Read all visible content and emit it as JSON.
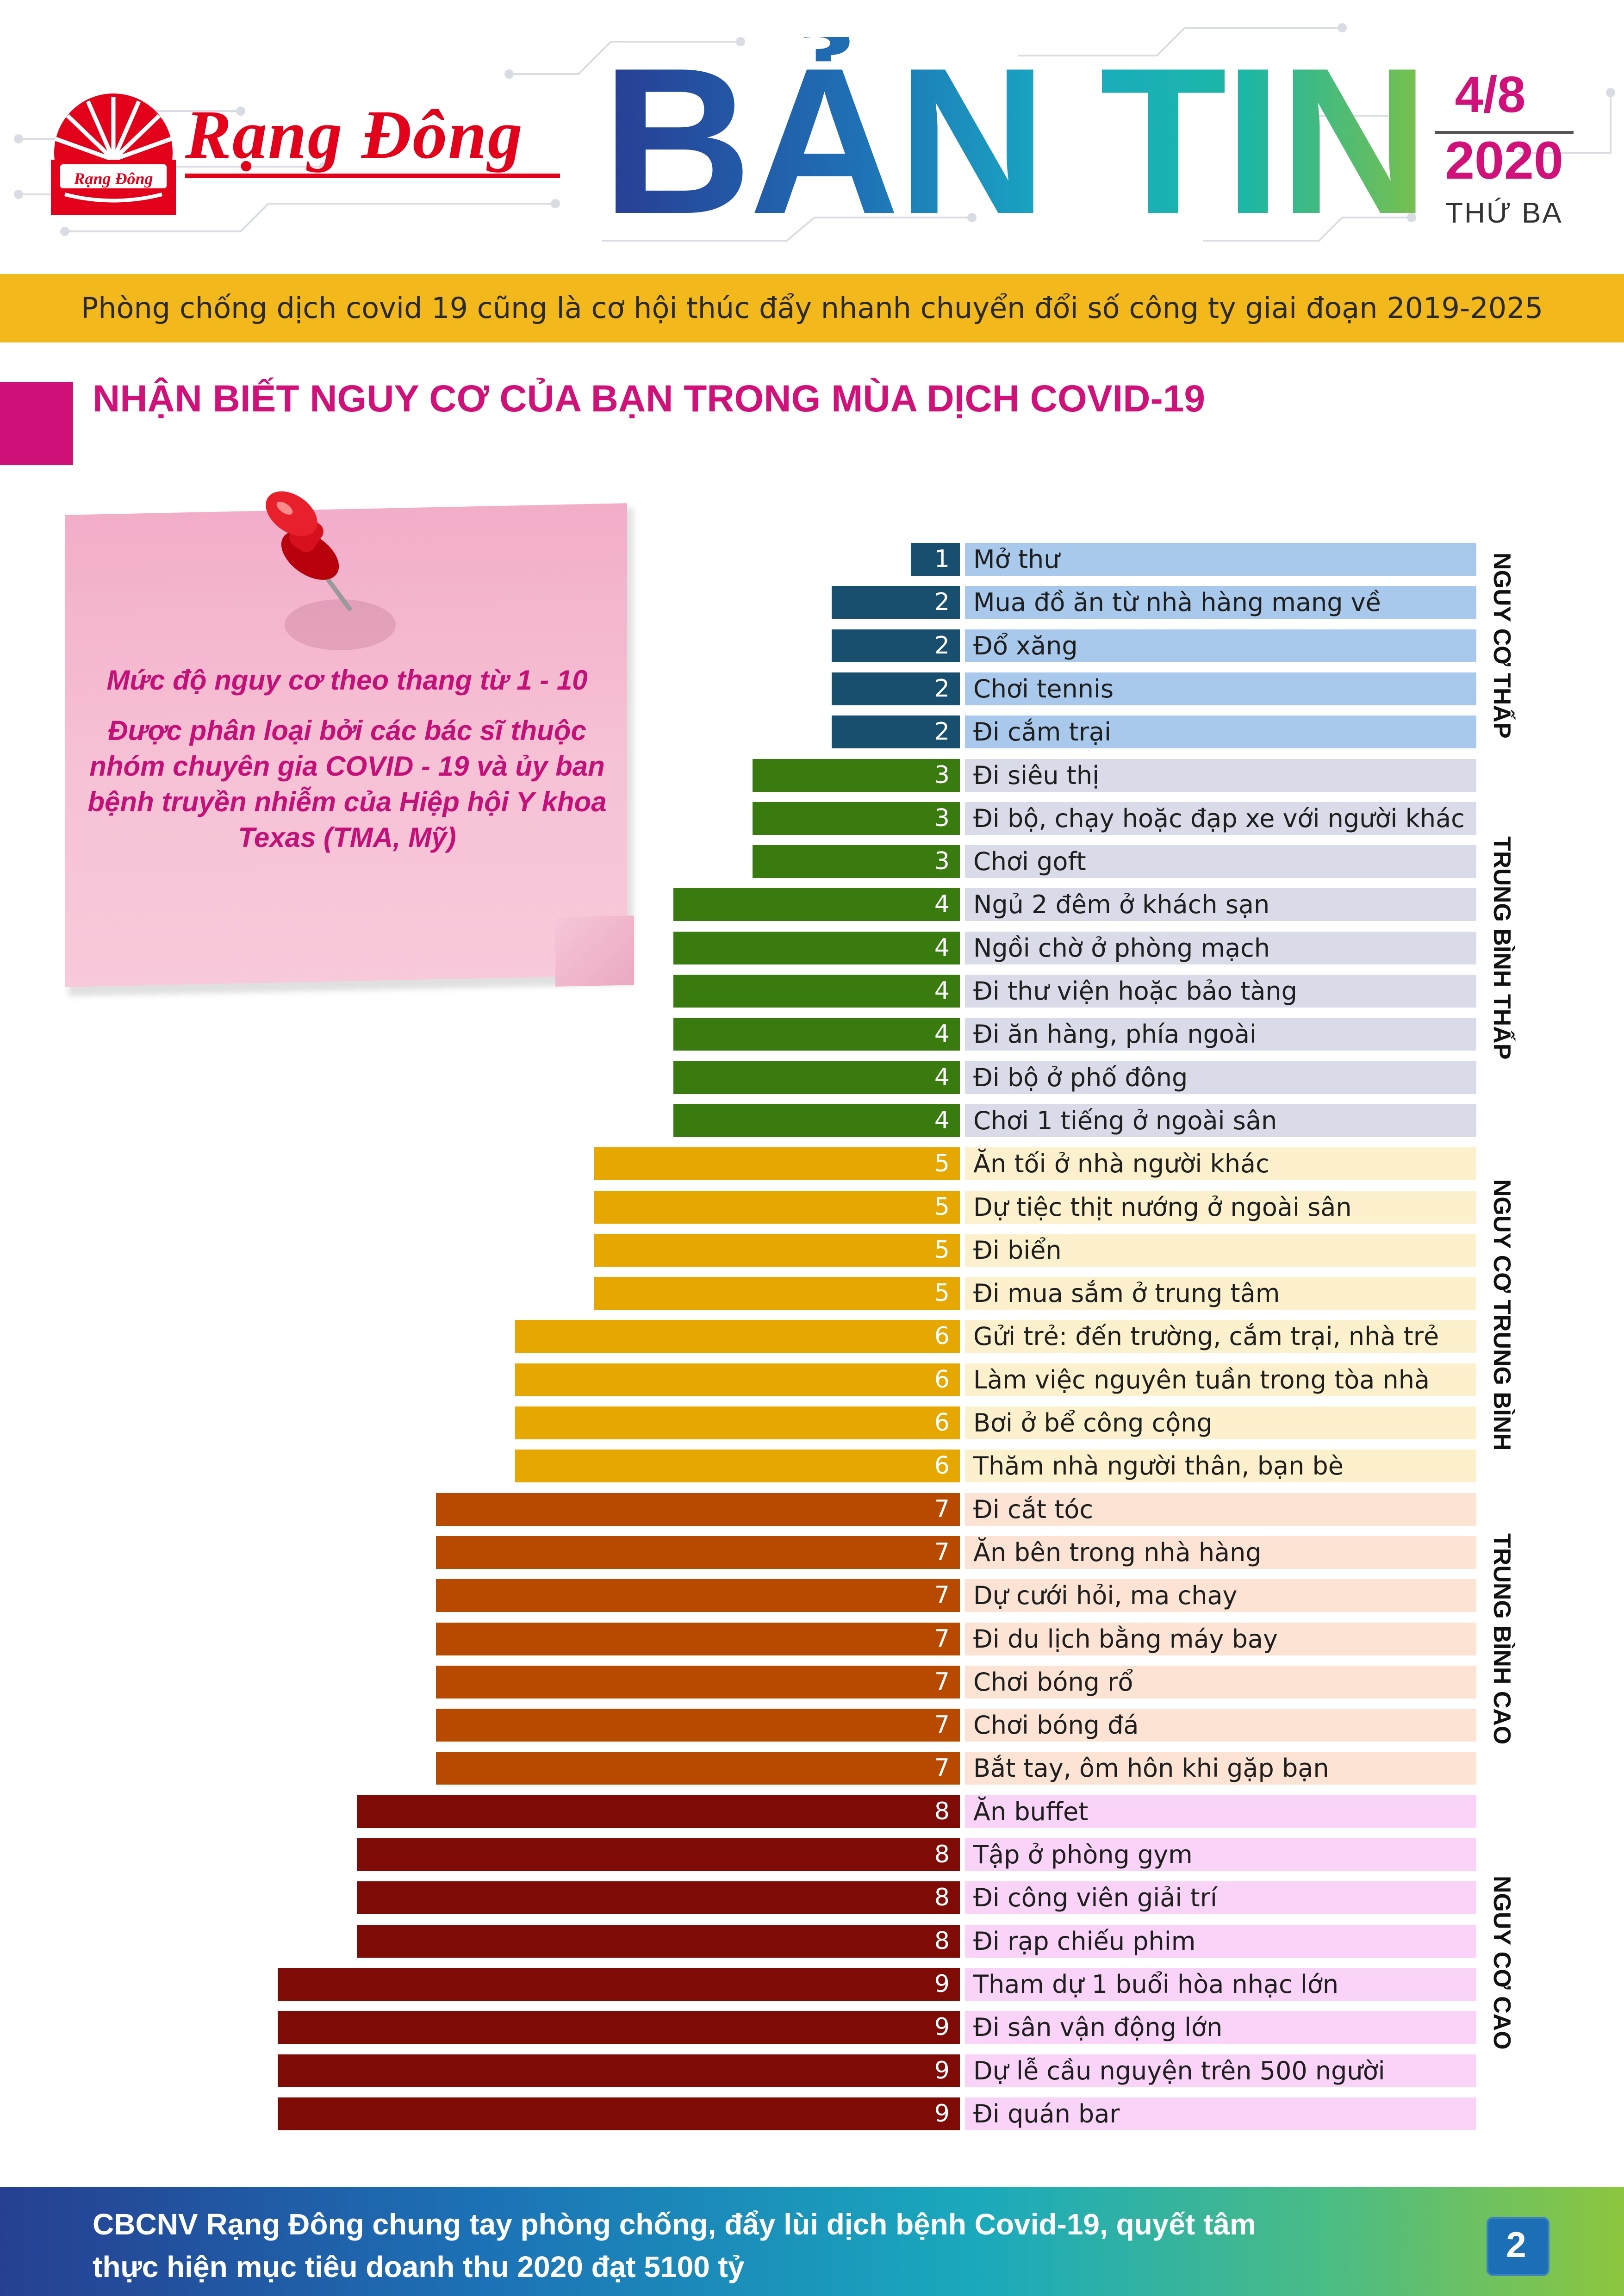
{
  "header": {
    "brand_name": "Rạng Đông",
    "logo_text": "Rạng Đông",
    "title": "BẢN TIN",
    "date_day": "4/8",
    "date_year": "2020",
    "date_weekday": "THỨ BA",
    "colors": {
      "brand_red": "#e3001b",
      "magenta": "#d0117a",
      "banner_yellow": "#f2b81c"
    }
  },
  "banner": {
    "text": "Phòng chống dịch covid 19 cũng là cơ hội thúc đẩy nhanh chuyển đổi số công ty giai đoạn 2019-2025"
  },
  "section": {
    "title": "NHẬN BIẾT NGUY CƠ CỦA BẠN TRONG MÙA DỊCH COVID-19"
  },
  "note": {
    "icon": "pushpin-icon",
    "line1": "Mức độ nguy cơ theo thang từ 1 - 10",
    "line2": "Được phân loại bởi các bác sĩ thuộc nhóm chuyên gia COVID - 19 và ủy ban bệnh truyền nhiễm của Hiệp hội Y khoa Texas (TMA, Mỹ)"
  },
  "chart_data": {
    "type": "bar",
    "orientation": "horizontal",
    "xlim": [
      0,
      10
    ],
    "categories": [
      "Mở thư",
      "Mua đồ ăn từ nhà hàng mang về",
      "Đổ xăng",
      "Chơi tennis",
      "Đi cắm trại",
      "Đi siêu thị",
      "Đi bộ, chạy hoặc đạp xe với người khác",
      "Chơi goft",
      "Ngủ 2 đêm ở khách sạn",
      "Ngồi chờ ở phòng mạch",
      "Đi thư viện hoặc bảo tàng",
      "Đi ăn hàng, phía ngoài",
      "Đi bộ ở phố đông",
      "Chơi 1 tiếng ở ngoài sân",
      "Ăn tối ở nhà người khác",
      "Dự tiệc thịt nướng ở ngoài sân",
      "Đi biển",
      "Đi mua sắm ở trung tâm",
      "Gửi trẻ: đến trường, cắm trại, nhà trẻ",
      "Làm việc nguyên tuần trong tòa nhà",
      "Bơi ở bể công cộng",
      "Thăm nhà người thân, bạn bè",
      "Đi cắt tóc",
      "Ăn bên trong nhà hàng",
      "Dự cưới hỏi, ma chay",
      "Đi du lịch bằng máy bay",
      "Chơi bóng rổ",
      "Chơi bóng đá",
      "Bắt tay, ôm hôn khi gặp bạn",
      "Ăn buffet",
      "Tập ở phòng gym",
      "Đi công viên giải trí",
      "Đi rạp chiếu phim",
      "Tham dự 1 buổi hòa nhạc lớn",
      "Đi sân vận động lớn",
      "Dự lễ cầu nguyện trên 500 người",
      "Đi quán bar"
    ],
    "values": [
      1,
      2,
      2,
      2,
      2,
      3,
      3,
      3,
      4,
      4,
      4,
      4,
      4,
      4,
      5,
      5,
      5,
      5,
      6,
      6,
      6,
      6,
      7,
      7,
      7,
      7,
      7,
      7,
      7,
      8,
      8,
      8,
      8,
      9,
      9,
      9,
      9
    ],
    "value_colors": {
      "1": "#184e6e",
      "2": "#184e6e",
      "3": "#3a7b10",
      "4": "#3a7b10",
      "5": "#e6a800",
      "6": "#e6a800",
      "7": "#b84a00",
      "8": "#7f0b07",
      "9": "#7f0b07"
    },
    "groups": [
      {
        "label": "NGUY CƠ THẤP",
        "start": 0,
        "end": 4,
        "row_color": "#a9c9ec"
      },
      {
        "label": "TRUNG BÌNH THẤP",
        "start": 5,
        "end": 13,
        "row_color": "#d9dce8"
      },
      {
        "label": "NGUY CƠ TRUNG BÌNH",
        "start": 14,
        "end": 21,
        "row_color": "#fdf1cd"
      },
      {
        "label": "TRUNG BÌNH CAO",
        "start": 22,
        "end": 28,
        "row_color": "#fde3d4"
      },
      {
        "label": "NGUY CƠ CAO",
        "start": 29,
        "end": 36,
        "row_color": "#f9d3f8"
      }
    ]
  },
  "footer": {
    "text_line1": "CBCNV Rạng Đông chung tay phòng chống, đẩy lùi dịch bệnh Covid-19, quyết tâm",
    "text_line2": "thực hiện mục tiêu doanh thu 2020 đạt 5100 tỷ",
    "page_number": "2"
  }
}
